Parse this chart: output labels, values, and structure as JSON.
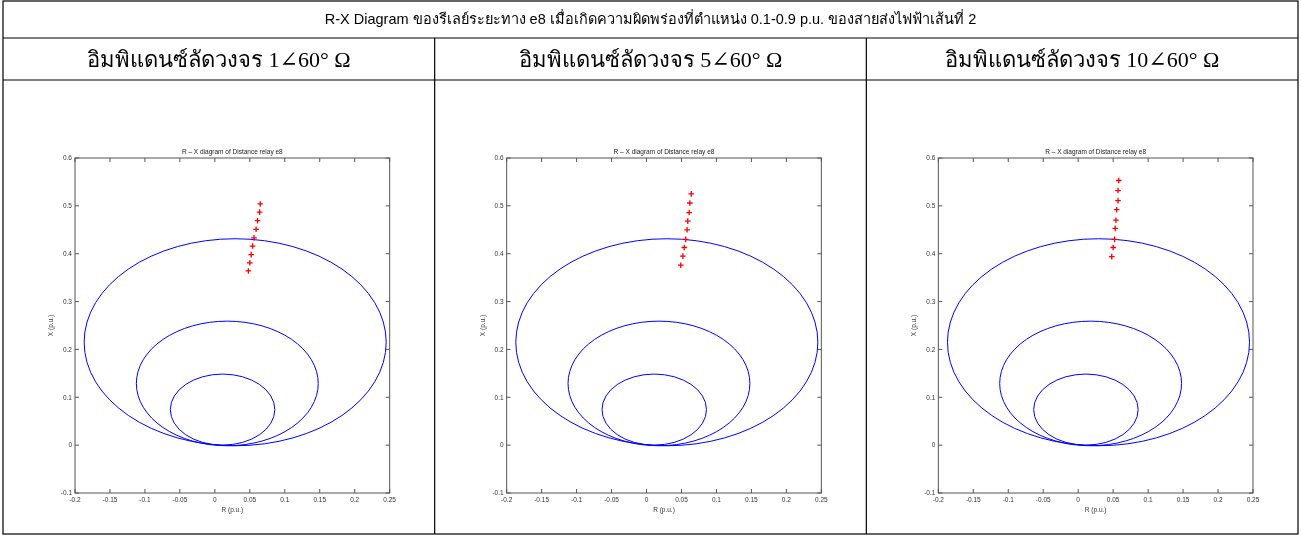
{
  "chart_data": [
    {
      "type": "scatter",
      "title": "อิมพิแดนซ์ลัดวงจร 1∠60° Ω",
      "subtitle": "R – X diagram of Distance relay e8",
      "xlabel": "R (p.u.)",
      "ylabel": "X (p.u.)",
      "annotations": [
        "R-X Diagram ของรีเลย์ระยะทาง e8 เมื่อเกิดความผิดพร่องที่ตำแหน่ง 0.1-0.9 p.u. ของสายส่งไฟฟ้าเส้นที่ 2"
      ],
      "xlim": [
        -0.2,
        0.25
      ],
      "ylim": [
        -0.1,
        0.6
      ],
      "xticks": [
        -0.2,
        -0.15,
        -0.1,
        -0.05,
        0,
        0.05,
        0.1,
        0.15,
        0.2,
        0.25
      ],
      "yticks": [
        -0.1,
        0,
        0.1,
        0.2,
        0.3,
        0.4,
        0.5,
        0.6
      ],
      "series": [
        {
          "color": "#ff0000",
          "marker": "cross",
          "x": [
            0.065,
            0.064,
            0.061,
            0.059,
            0.056,
            0.054,
            0.052,
            0.05,
            0.048
          ],
          "values": [
            0.504,
            0.487,
            0.469,
            0.451,
            0.433,
            0.416,
            0.398,
            0.381,
            0.364
          ]
        }
      ]
    },
    {
      "type": "scatter",
      "title": "อิมพิแดนซ์ลัดวงจร 5∠60° Ω",
      "subtitle": "R – X diagram of Distance relay e8",
      "xlabel": "R (p.u.)",
      "ylabel": "X (p.u.)",
      "xlim": [
        -0.2,
        0.25
      ],
      "ylim": [
        -0.1,
        0.6
      ],
      "xticks": [
        -0.2,
        -0.15,
        -0.1,
        -0.05,
        0,
        0.05,
        0.1,
        0.15,
        0.2,
        0.25
      ],
      "yticks": [
        -0.1,
        0,
        0.1,
        0.2,
        0.3,
        0.4,
        0.5,
        0.6
      ],
      "series": [
        {
          "color": "#ff0000",
          "marker": "cross",
          "x": [
            0.064,
            0.062,
            0.061,
            0.059,
            0.058,
            0.056,
            0.054,
            0.052,
            0.049
          ],
          "values": [
            0.525,
            0.506,
            0.486,
            0.468,
            0.45,
            0.43,
            0.413,
            0.395,
            0.376
          ]
        }
      ]
    },
    {
      "type": "scatter",
      "title": "อิมพิแดนซ์ลัดวงจร 10∠60° Ω",
      "subtitle": "R – X diagram of Distance relay e8",
      "xlabel": "R (p.u.)",
      "ylabel": "X (p.u.)",
      "xlim": [
        -0.2,
        0.25
      ],
      "ylim": [
        -0.1,
        0.6
      ],
      "xticks": [
        -0.2,
        -0.15,
        -0.1,
        -0.05,
        0,
        0.05,
        0.1,
        0.15,
        0.2,
        0.25
      ],
      "yticks": [
        -0.1,
        0,
        0.1,
        0.2,
        0.3,
        0.4,
        0.5,
        0.6
      ],
      "series": [
        {
          "color": "#ff0000",
          "marker": "cross",
          "x": [
            0.058,
            0.057,
            0.057,
            0.055,
            0.054,
            0.053,
            0.052,
            0.05,
            0.048
          ],
          "values": [
            0.553,
            0.532,
            0.511,
            0.492,
            0.47,
            0.453,
            0.43,
            0.413,
            0.394
          ]
        }
      ]
    }
  ]
}
